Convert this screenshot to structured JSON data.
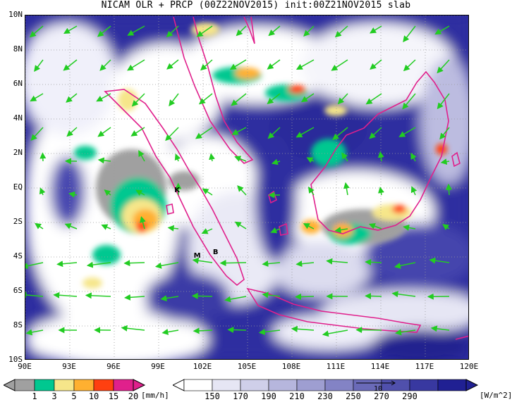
{
  "title": "NICAM OLR + PRCP (00Z22NOV2015) init:00Z21NOV2015 slab",
  "map": {
    "lon_range": [
      90,
      120
    ],
    "lat_range": [
      -10,
      10
    ],
    "lon_ticks": [
      "90E",
      "93E",
      "96E",
      "99E",
      "102E",
      "105E",
      "108E",
      "111E",
      "114E",
      "117E",
      "120E"
    ],
    "lat_ticks": [
      "10N",
      "8N",
      "6N",
      "4N",
      "2N",
      "EQ",
      "2S",
      "4S",
      "6S",
      "8S",
      "10S"
    ],
    "grid": "dotted",
    "place_labels": [
      {
        "text": "K",
        "lon": 100.3,
        "lat": -0.2
      },
      {
        "text": "M",
        "lon": 101.6,
        "lat": -4.0
      },
      {
        "text": "B",
        "lon": 102.9,
        "lat": -3.8
      }
    ],
    "coast_color": "#e0208c",
    "wind_color": "#22cc22"
  },
  "precip_colorbar": {
    "unit": "[mm/h]",
    "labels": [
      "1",
      "3",
      "5",
      "10",
      "15",
      "20"
    ],
    "colors": [
      "#a0a0a0",
      "#00c890",
      "#f6e68a",
      "#ffb030",
      "#ff4010",
      "#e0208c"
    ]
  },
  "olr_colorbar": {
    "unit": "[W/m^2]",
    "labels": [
      "150",
      "170",
      "190",
      "210",
      "230",
      "250",
      "270",
      "290"
    ],
    "colors": [
      "#ffffff",
      "#e6e6f4",
      "#cfcfe9",
      "#b6b6dd",
      "#9e9ed1",
      "#8383c5",
      "#6a6ab8",
      "#5050ac",
      "#3838a0",
      "#202093"
    ]
  },
  "reference_vector": {
    "label": "10"
  }
}
